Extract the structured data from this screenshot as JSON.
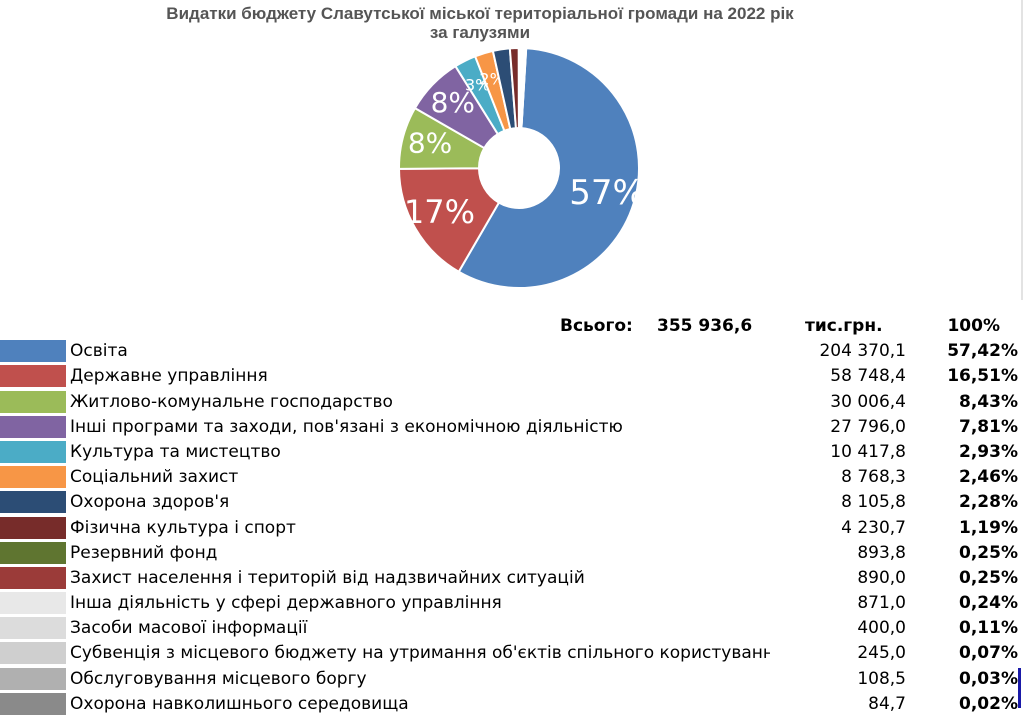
{
  "chart_data": {
    "type": "pie",
    "title": "Видатки бюджету Славутської міської територіальної громади на 2022 рік за галузями",
    "title_lines": [
      "Видатки бюджету Славутської міської територіальної громади на 2022 рік",
      "за галузями"
    ],
    "total_label": "Всього:",
    "total_value": "355 936,6",
    "unit": "тис.грн.",
    "total_pct": "100%",
    "categories": [
      "Освіта",
      "Державне управління",
      "Житлово-комунальне господарство",
      "Інші програми та заходи, пов'язані з економічною діяльністю",
      "Культура та мистецтво",
      "Соціальний захист",
      "Охорона здоров'я",
      "Фізична культура і спорт",
      "Резервний фонд",
      "Захист населення і територій від надзвичайних ситуацій",
      "Інша діяльність у сфері державного управління",
      "Засоби масової інформації",
      "Субвенція з місцевого бюджету на утримання об'єктів спільного користування",
      "Обслуговування місцевого боргу",
      "Охорона навколишнього середовища"
    ],
    "values": [
      204370.1,
      58748.4,
      30006.4,
      27796.0,
      10417.8,
      8768.3,
      8105.8,
      4230.7,
      893.8,
      890.0,
      871.0,
      400.0,
      245.0,
      108.5,
      84.7
    ],
    "values_text": [
      "204 370,1",
      "58 748,4",
      "30 006,4",
      "27 796,0",
      "10 417,8",
      "8 768,3",
      "8 105,8",
      "4 230,7",
      "893,8",
      "890,0",
      "871,0",
      "400,0",
      "245,0",
      "108,5",
      "84,7"
    ],
    "percents_text": [
      "57,42%",
      "16,51%",
      "8,43%",
      "7,81%",
      "2,93%",
      "2,46%",
      "2,28%",
      "1,19%",
      "0,25%",
      "0,25%",
      "0,24%",
      "0,11%",
      "0,07%",
      "0,03%",
      "0,02%"
    ],
    "slice_labels": [
      "57%",
      "17%",
      "8%",
      "8%",
      "3%",
      "2%",
      "",
      "",
      "",
      "",
      "",
      "",
      "",
      "",
      ""
    ],
    "colors": [
      "#4f81bd",
      "#c0504d",
      "#9bbb59",
      "#8064a2",
      "#4bacc6",
      "#f79646",
      "#2c4d75",
      "#772c2a",
      "#5f7530",
      "#9b3b39",
      "#e8e8e8",
      "#dcdcdc",
      "#cfcfcf",
      "#b0b0b0",
      "#8a8a8a"
    ],
    "legend": "bottom"
  }
}
